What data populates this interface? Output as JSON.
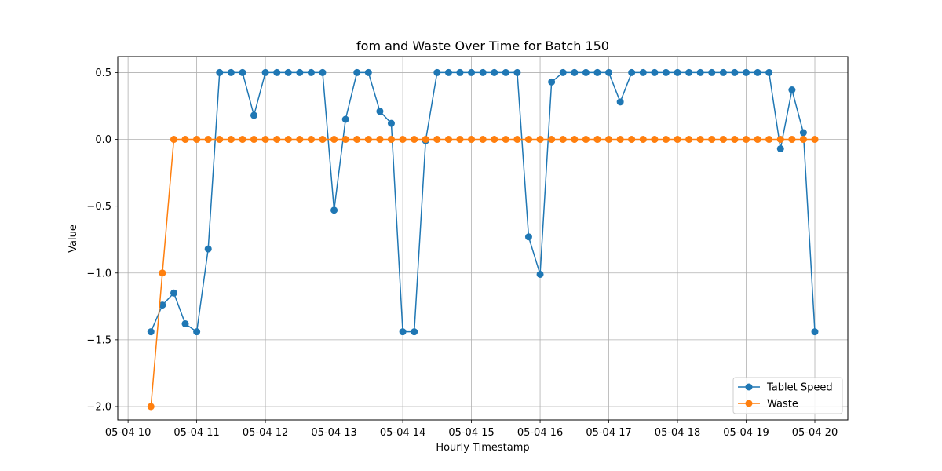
{
  "chart_data": {
    "type": "line",
    "title": "fom and Waste Over Time for Batch 150",
    "xlabel": "Hourly Timestamp",
    "ylabel": "Value",
    "x_ticks": [
      "05-04 10",
      "05-04 11",
      "05-04 12",
      "05-04 13",
      "05-04 14",
      "05-04 15",
      "05-04 16",
      "05-04 17",
      "05-04 18",
      "05-04 19",
      "05-04 20"
    ],
    "y_ticks": [
      "0.5",
      "0.0",
      "−0.5",
      "−1.0",
      "−1.5",
      "−2.0"
    ],
    "y_tick_values": [
      0.5,
      0.0,
      -0.5,
      -1.0,
      -1.5,
      -2.0
    ],
    "ylim": [
      -2.1,
      0.62
    ],
    "xlim_hours": [
      9.85,
      20.48
    ],
    "grid": true,
    "legend_position": "bottom-right",
    "x_hours": [
      10.333,
      10.5,
      10.667,
      10.833,
      11.0,
      11.167,
      11.333,
      11.5,
      11.667,
      11.833,
      12.0,
      12.167,
      12.333,
      12.5,
      12.667,
      12.833,
      13.0,
      13.167,
      13.333,
      13.5,
      13.667,
      13.833,
      14.0,
      14.167,
      14.333,
      14.5,
      14.667,
      14.833,
      15.0,
      15.167,
      15.333,
      15.5,
      15.667,
      15.833,
      16.0,
      16.167,
      16.333,
      16.5,
      16.667,
      16.833,
      17.0,
      17.167,
      17.333,
      17.5,
      17.667,
      17.833,
      18.0,
      18.167,
      18.333,
      18.5,
      18.667,
      18.833,
      19.0,
      19.167,
      19.333,
      19.5,
      19.667,
      19.833,
      20.0
    ],
    "series": [
      {
        "name": "Tablet Speed",
        "color": "#1f77b4",
        "values": [
          -1.44,
          -1.24,
          -1.15,
          -1.38,
          -1.44,
          -0.82,
          0.5,
          0.5,
          0.5,
          0.18,
          0.5,
          0.5,
          0.5,
          0.5,
          0.5,
          0.5,
          -0.53,
          0.15,
          0.5,
          0.5,
          0.21,
          0.12,
          -1.44,
          -1.44,
          -0.01,
          0.5,
          0.5,
          0.5,
          0.5,
          0.5,
          0.5,
          0.5,
          0.5,
          -0.73,
          -1.01,
          0.43,
          0.5,
          0.5,
          0.5,
          0.5,
          0.5,
          0.28,
          0.5,
          0.5,
          0.5,
          0.5,
          0.5,
          0.5,
          0.5,
          0.5,
          0.5,
          0.5,
          0.5,
          0.5,
          0.5,
          -0.07,
          0.37,
          0.05,
          -1.44
        ]
      },
      {
        "name": "Waste",
        "color": "#ff7f0e",
        "values": [
          -2.0,
          -1.0,
          0,
          0,
          0,
          0,
          0,
          0,
          0,
          0,
          0,
          0,
          0,
          0,
          0,
          0,
          0,
          0,
          0,
          0,
          0,
          0,
          0,
          0,
          0,
          0,
          0,
          0,
          0,
          0,
          0,
          0,
          0,
          0,
          0,
          0,
          0,
          0,
          0,
          0,
          0,
          0,
          0,
          0,
          0,
          0,
          0,
          0,
          0,
          0,
          0,
          0,
          0,
          0,
          0,
          0,
          0,
          0,
          0
        ]
      }
    ]
  }
}
